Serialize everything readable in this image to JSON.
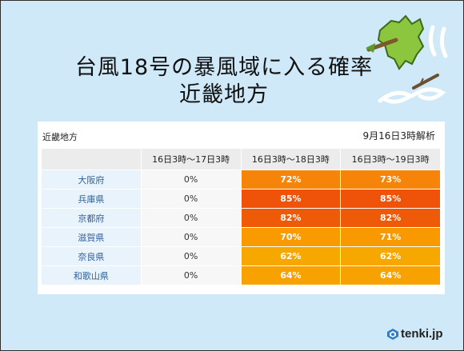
{
  "title_line1": "台風18号の暴風域に入る確率",
  "title_line2": "近畿地方",
  "card": {
    "region": "近畿地方",
    "analysis": "9月16日3時解析"
  },
  "columns": [
    "16日3時～17日3時",
    "16日3時～18日3時",
    "16日3時～19日3時"
  ],
  "rows": [
    {
      "pref": "大阪府",
      "values": [
        "0%",
        "72%",
        "73%"
      ]
    },
    {
      "pref": "兵庫県",
      "values": [
        "0%",
        "85%",
        "85%"
      ]
    },
    {
      "pref": "京都府",
      "values": [
        "0%",
        "82%",
        "82%"
      ]
    },
    {
      "pref": "滋賀県",
      "values": [
        "0%",
        "70%",
        "71%"
      ]
    },
    {
      "pref": "奈良県",
      "values": [
        "0%",
        "62%",
        "62%"
      ]
    },
    {
      "pref": "和歌山県",
      "values": [
        "0%",
        "64%",
        "64%"
      ]
    }
  ],
  "colors": {
    "p62": "#f7a800",
    "p64": "#f7a200",
    "p70": "#f89a00",
    "p71": "#f89900",
    "p72": "#f68409",
    "p73": "#f68409",
    "p82": "#ef5a08",
    "p85": "#ee5309"
  },
  "logo": {
    "text": "tenki.jp",
    "icon": "tenki-logo-icon"
  }
}
